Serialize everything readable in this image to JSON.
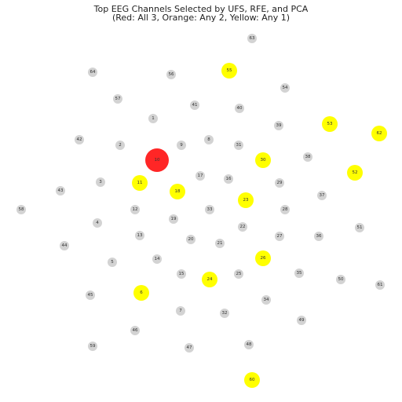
{
  "title": {
    "line1": "Top EEG Channels Selected by UFS, RFE, and PCA",
    "line2": "(Red: All 3, Orange: Any 2, Yellow: Any 1)"
  },
  "colors": {
    "red": "#ff0000",
    "yellow": "#ffff00",
    "gray": "#d3d3d3",
    "label": "#333333"
  },
  "channels": {
    "red": [
      "10"
    ],
    "yellow": [
      "55",
      "53",
      "62",
      "30",
      "52",
      "11",
      "18",
      "23",
      "26",
      "24",
      "6",
      "60"
    ],
    "gray": [
      "63",
      "64",
      "56",
      "54",
      "57",
      "41",
      "40",
      "1",
      "39",
      "42",
      "2",
      "9",
      "8",
      "31",
      "38",
      "17",
      "16",
      "29",
      "3",
      "43",
      "37",
      "58",
      "12",
      "19",
      "33",
      "28",
      "4",
      "22",
      "51",
      "44",
      "13",
      "20",
      "21",
      "27",
      "36",
      "14",
      "5",
      "25",
      "15",
      "35",
      "50",
      "61",
      "45",
      "34",
      "7",
      "32",
      "49",
      "46",
      "59",
      "47",
      "48"
    ]
  }
}
